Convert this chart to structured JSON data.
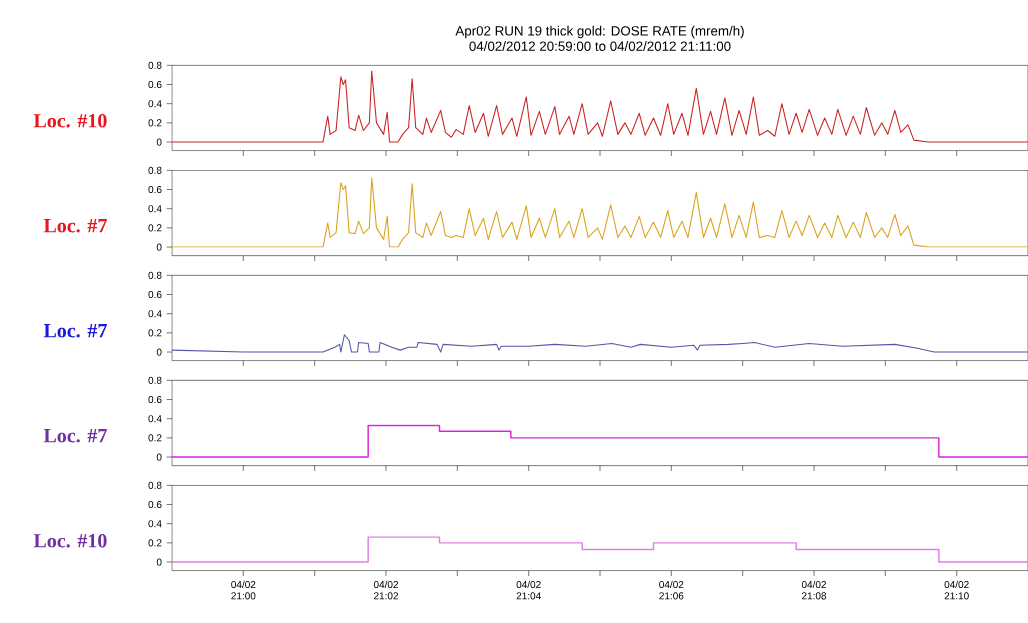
{
  "chart_data": [
    {
      "type": "line",
      "title": "Apr02 RUN 19  thick gold:    DOSE RATE (mrem/h)",
      "subtitle": "04/02/2012 20:59:00  to  04/02/2012 21:11:00",
      "ylabel": "Loc. #10",
      "tick_labels": "y",
      "xlim": [
        "2012-04-02T20:59:00",
        "2012-04-02T21:11:00"
      ],
      "ylim": [
        -0.09,
        0.8
      ],
      "yticks": [
        0,
        0.2,
        0.4,
        0.6,
        0.8
      ],
      "x": [
        "2012-04-02T20:59:00",
        "2012-04-02T21:00:00",
        "2012-04-02T21:01:07",
        "2012-04-02T21:01:11",
        "2012-04-02T21:01:13",
        "2012-04-02T21:01:18",
        "2012-04-02T21:01:22",
        "2012-04-02T21:01:24",
        "2012-04-02T21:01:26",
        "2012-04-02T21:01:29",
        "2012-04-02T21:01:34",
        "2012-04-02T21:01:37",
        "2012-04-02T21:01:41",
        "2012-04-02T21:01:46",
        "2012-04-02T21:01:48",
        "2012-04-02T21:01:52",
        "2012-04-02T21:01:58",
        "2012-04-02T21:02:01",
        "2012-04-02T21:02:03",
        "2012-04-02T21:02:10",
        "2012-04-02T21:02:14",
        "2012-04-02T21:02:19",
        "2012-04-02T21:02:22",
        "2012-04-02T21:02:25",
        "2012-04-02T21:02:31",
        "2012-04-02T21:02:34",
        "2012-04-02T21:02:38",
        "2012-04-02T21:02:46",
        "2012-04-02T21:02:50",
        "2012-04-02T21:02:55",
        "2012-04-02T21:02:59",
        "2012-04-02T21:03:05",
        "2012-04-02T21:03:10",
        "2012-04-02T21:03:15",
        "2012-04-02T21:03:22",
        "2012-04-02T21:03:26",
        "2012-04-02T21:03:33",
        "2012-04-02T21:03:38",
        "2012-04-02T21:03:46",
        "2012-04-02T21:03:50",
        "2012-04-02T21:03:58",
        "2012-04-02T21:04:02",
        "2012-04-02T21:04:09",
        "2012-04-02T21:04:14",
        "2012-04-02T21:04:22",
        "2012-04-02T21:04:26",
        "2012-04-02T21:04:34",
        "2012-04-02T21:04:38",
        "2012-04-02T21:04:45",
        "2012-04-02T21:04:50",
        "2012-04-02T21:04:58",
        "2012-04-02T21:05:02",
        "2012-04-02T21:05:09",
        "2012-04-02T21:05:15",
        "2012-04-02T21:05:21",
        "2012-04-02T21:05:26",
        "2012-04-02T21:05:33",
        "2012-04-02T21:05:38",
        "2012-04-02T21:05:45",
        "2012-04-02T21:05:51",
        "2012-04-02T21:05:57",
        "2012-04-02T21:06:02",
        "2012-04-02T21:06:09",
        "2012-04-02T21:06:14",
        "2012-04-02T21:06:21",
        "2012-04-02T21:06:27",
        "2012-04-02T21:06:33",
        "2012-04-02T21:06:38",
        "2012-04-02T21:06:45",
        "2012-04-02T21:06:51",
        "2012-04-02T21:06:57",
        "2012-04-02T21:07:03",
        "2012-04-02T21:07:09",
        "2012-04-02T21:07:14",
        "2012-04-02T21:07:21",
        "2012-04-02T21:07:27",
        "2012-04-02T21:07:33",
        "2012-04-02T21:07:39",
        "2012-04-02T21:07:45",
        "2012-04-02T21:07:50",
        "2012-04-02T21:07:56",
        "2012-04-02T21:08:03",
        "2012-04-02T21:08:09",
        "2012-04-02T21:08:15",
        "2012-04-02T21:08:20",
        "2012-04-02T21:08:27",
        "2012-04-02T21:08:33",
        "2012-04-02T21:08:39",
        "2012-04-02T21:08:44",
        "2012-04-02T21:08:51",
        "2012-04-02T21:08:57",
        "2012-04-02T21:09:02",
        "2012-04-02T21:09:08",
        "2012-04-02T21:09:13",
        "2012-04-02T21:09:19",
        "2012-04-02T21:09:24",
        "2012-04-02T21:09:36",
        "2012-04-02T21:11:00"
      ],
      "series": [
        {
          "color": "#cc2222",
          "values": [
            0,
            0,
            0,
            0.27,
            0.08,
            0.12,
            0.68,
            0.6,
            0.65,
            0.15,
            0.12,
            0.28,
            0.12,
            0.2,
            0.74,
            0.2,
            0.08,
            0.31,
            0,
            0,
            0.08,
            0.15,
            0.66,
            0.15,
            0.08,
            0.25,
            0.1,
            0.33,
            0.1,
            0.05,
            0.13,
            0.08,
            0.38,
            0.1,
            0.3,
            0.06,
            0.38,
            0.08,
            0.25,
            0.06,
            0.47,
            0.07,
            0.32,
            0.08,
            0.37,
            0.08,
            0.27,
            0.08,
            0.4,
            0.08,
            0.2,
            0.06,
            0.43,
            0.08,
            0.2,
            0.08,
            0.3,
            0.07,
            0.25,
            0.07,
            0.4,
            0.08,
            0.3,
            0.07,
            0.56,
            0.08,
            0.32,
            0.08,
            0.46,
            0.07,
            0.33,
            0.08,
            0.47,
            0.07,
            0.12,
            0.06,
            0.4,
            0.08,
            0.3,
            0.1,
            0.34,
            0.07,
            0.25,
            0.08,
            0.34,
            0.07,
            0.27,
            0.08,
            0.36,
            0.07,
            0.2,
            0.08,
            0.33,
            0.1,
            0.18,
            0.02,
            0,
            0
          ]
        }
      ]
    },
    {
      "type": "line",
      "ylabel": "Loc. #7",
      "tick_labels": "y",
      "xlim": [
        "2012-04-02T20:59:00",
        "2012-04-02T21:11:00"
      ],
      "ylim": [
        -0.09,
        0.8
      ],
      "yticks": [
        0,
        0.2,
        0.4,
        0.6,
        0.8
      ],
      "x": [
        "2012-04-02T20:59:00",
        "2012-04-02T21:00:00",
        "2012-04-02T21:01:07",
        "2012-04-02T21:01:11",
        "2012-04-02T21:01:13",
        "2012-04-02T21:01:18",
        "2012-04-02T21:01:22",
        "2012-04-02T21:01:24",
        "2012-04-02T21:01:26",
        "2012-04-02T21:01:29",
        "2012-04-02T21:01:34",
        "2012-04-02T21:01:37",
        "2012-04-02T21:01:41",
        "2012-04-02T21:01:46",
        "2012-04-02T21:01:48",
        "2012-04-02T21:01:52",
        "2012-04-02T21:01:58",
        "2012-04-02T21:02:01",
        "2012-04-02T21:02:03",
        "2012-04-02T21:02:10",
        "2012-04-02T21:02:14",
        "2012-04-02T21:02:19",
        "2012-04-02T21:02:22",
        "2012-04-02T21:02:25",
        "2012-04-02T21:02:31",
        "2012-04-02T21:02:34",
        "2012-04-02T21:02:38",
        "2012-04-02T21:02:46",
        "2012-04-02T21:02:50",
        "2012-04-02T21:02:55",
        "2012-04-02T21:02:59",
        "2012-04-02T21:03:05",
        "2012-04-02T21:03:10",
        "2012-04-02T21:03:15",
        "2012-04-02T21:03:22",
        "2012-04-02T21:03:26",
        "2012-04-02T21:03:33",
        "2012-04-02T21:03:38",
        "2012-04-02T21:03:46",
        "2012-04-02T21:03:50",
        "2012-04-02T21:03:58",
        "2012-04-02T21:04:02",
        "2012-04-02T21:04:09",
        "2012-04-02T21:04:14",
        "2012-04-02T21:04:22",
        "2012-04-02T21:04:26",
        "2012-04-02T21:04:34",
        "2012-04-02T21:04:38",
        "2012-04-02T21:04:45",
        "2012-04-02T21:04:50",
        "2012-04-02T21:04:58",
        "2012-04-02T21:05:02",
        "2012-04-02T21:05:09",
        "2012-04-02T21:05:15",
        "2012-04-02T21:05:21",
        "2012-04-02T21:05:26",
        "2012-04-02T21:05:33",
        "2012-04-02T21:05:38",
        "2012-04-02T21:05:45",
        "2012-04-02T21:05:51",
        "2012-04-02T21:05:57",
        "2012-04-02T21:06:02",
        "2012-04-02T21:06:09",
        "2012-04-02T21:06:14",
        "2012-04-02T21:06:21",
        "2012-04-02T21:06:27",
        "2012-04-02T21:06:33",
        "2012-04-02T21:06:38",
        "2012-04-02T21:06:45",
        "2012-04-02T21:06:51",
        "2012-04-02T21:06:57",
        "2012-04-02T21:07:03",
        "2012-04-02T21:07:09",
        "2012-04-02T21:07:14",
        "2012-04-02T21:07:21",
        "2012-04-02T21:07:27",
        "2012-04-02T21:07:33",
        "2012-04-02T21:07:39",
        "2012-04-02T21:07:45",
        "2012-04-02T21:07:50",
        "2012-04-02T21:07:56",
        "2012-04-02T21:08:03",
        "2012-04-02T21:08:09",
        "2012-04-02T21:08:15",
        "2012-04-02T21:08:20",
        "2012-04-02T21:08:27",
        "2012-04-02T21:08:33",
        "2012-04-02T21:08:39",
        "2012-04-02T21:08:44",
        "2012-04-02T21:08:51",
        "2012-04-02T21:08:57",
        "2012-04-02T21:09:02",
        "2012-04-02T21:09:08",
        "2012-04-02T21:09:13",
        "2012-04-02T21:09:19",
        "2012-04-02T21:09:24",
        "2012-04-02T21:09:36",
        "2012-04-02T21:11:00"
      ],
      "series": [
        {
          "color": "#d9a21b",
          "values": [
            0,
            0,
            0,
            0.25,
            0.1,
            0.15,
            0.67,
            0.6,
            0.64,
            0.15,
            0.14,
            0.27,
            0.14,
            0.2,
            0.72,
            0.2,
            0.08,
            0.32,
            0,
            0,
            0.08,
            0.15,
            0.66,
            0.15,
            0.1,
            0.25,
            0.12,
            0.37,
            0.12,
            0.1,
            0.12,
            0.1,
            0.4,
            0.12,
            0.3,
            0.08,
            0.37,
            0.1,
            0.26,
            0.08,
            0.43,
            0.1,
            0.3,
            0.1,
            0.4,
            0.1,
            0.27,
            0.1,
            0.4,
            0.1,
            0.2,
            0.08,
            0.44,
            0.1,
            0.22,
            0.1,
            0.32,
            0.1,
            0.26,
            0.1,
            0.38,
            0.1,
            0.27,
            0.1,
            0.57,
            0.1,
            0.3,
            0.1,
            0.45,
            0.1,
            0.33,
            0.1,
            0.47,
            0.1,
            0.12,
            0.1,
            0.38,
            0.1,
            0.27,
            0.12,
            0.33,
            0.1,
            0.25,
            0.1,
            0.33,
            0.1,
            0.26,
            0.1,
            0.36,
            0.1,
            0.2,
            0.1,
            0.34,
            0.12,
            0.22,
            0.02,
            0,
            0
          ]
        }
      ]
    },
    {
      "type": "line",
      "ylabel": "Loc. #7",
      "tick_labels": "y",
      "xlim": [
        "2012-04-02T20:59:00",
        "2012-04-02T21:11:00"
      ],
      "ylim": [
        -0.09,
        0.8
      ],
      "yticks": [
        0,
        0.2,
        0.4,
        0.6,
        0.8
      ],
      "x": [
        "2012-04-02T20:59:00",
        "2012-04-02T21:00:00",
        "2012-04-02T21:01:07",
        "2012-04-02T21:01:17",
        "2012-04-02T21:01:21",
        "2012-04-02T21:01:22",
        "2012-04-02T21:01:25",
        "2012-04-02T21:01:29",
        "2012-04-02T21:01:31",
        "2012-04-02T21:01:36",
        "2012-04-02T21:01:37",
        "2012-04-02T21:01:45",
        "2012-04-02T21:01:46",
        "2012-04-02T21:01:54",
        "2012-04-02T21:01:55",
        "2012-04-02T21:02:05",
        "2012-04-02T21:02:12",
        "2012-04-02T21:02:19",
        "2012-04-02T21:02:26",
        "2012-04-02T21:02:27",
        "2012-04-02T21:02:43",
        "2012-04-02T21:02:46",
        "2012-04-02T21:02:48",
        "2012-04-02T21:03:12",
        "2012-04-02T21:03:33",
        "2012-04-02T21:03:35",
        "2012-04-02T21:03:37",
        "2012-04-02T21:04:00",
        "2012-04-02T21:04:22",
        "2012-04-02T21:04:48",
        "2012-04-02T21:05:10",
        "2012-04-02T21:05:26",
        "2012-04-02T21:05:34",
        "2012-04-02T21:06:00",
        "2012-04-02T21:06:19",
        "2012-04-02T21:06:22",
        "2012-04-02T21:06:24",
        "2012-04-02T21:06:48",
        "2012-04-02T21:07:00",
        "2012-04-02T21:07:10",
        "2012-04-02T21:07:27",
        "2012-04-02T21:07:56",
        "2012-04-02T21:08:24",
        "2012-04-02T21:09:08",
        "2012-04-02T21:09:27",
        "2012-04-02T21:09:41",
        "2012-04-02T21:11:00"
      ],
      "series": [
        {
          "color": "#5555aa",
          "values": [
            0.02,
            0,
            0,
            0.05,
            0.08,
            0,
            0.18,
            0.12,
            0,
            0,
            0.1,
            0.09,
            0,
            0,
            0.1,
            0.05,
            0.02,
            0.05,
            0.05,
            0.1,
            0.08,
            0,
            0.08,
            0.06,
            0.08,
            0.02,
            0.06,
            0.06,
            0.08,
            0.06,
            0.09,
            0.05,
            0.08,
            0.05,
            0.07,
            0.02,
            0.07,
            0.08,
            0.09,
            0.1,
            0.05,
            0.09,
            0.06,
            0.08,
            0.04,
            0,
            0
          ]
        }
      ]
    },
    {
      "type": "step",
      "ylabel": "Loc. #7",
      "tick_labels": "y",
      "xlim": [
        "2012-04-02T20:59:00",
        "2012-04-02T21:11:00"
      ],
      "ylim": [
        -0.09,
        0.8
      ],
      "yticks": [
        0,
        0.2,
        0.4,
        0.6,
        0.8
      ],
      "x": [
        "2012-04-02T20:59:00",
        "2012-04-02T21:01:45",
        "2012-04-02T21:02:45",
        "2012-04-02T21:03:45",
        "2012-04-02T21:04:45",
        "2012-04-02T21:05:45",
        "2012-04-02T21:06:45",
        "2012-04-02T21:07:45",
        "2012-04-02T21:08:45",
        "2012-04-02T21:09:45",
        "2012-04-02T21:11:00"
      ],
      "series": [
        {
          "color": "#dd22dd",
          "values": [
            0,
            0.33,
            0.27,
            0.2,
            0.2,
            0.2,
            0.2,
            0.2,
            0.2,
            0,
            0
          ]
        }
      ]
    },
    {
      "type": "step",
      "ylabel": "Loc. #10",
      "xlim": [
        "2012-04-02T20:59:00",
        "2012-04-02T21:11:00"
      ],
      "ylim": [
        -0.09,
        0.8
      ],
      "yticks": [
        0,
        0.2,
        0.4,
        0.6,
        0.8
      ],
      "xticks": [
        {
          "value": "2012-04-02T21:00",
          "label": "04/02 21:00"
        },
        {
          "value": "2012-04-02T21:01",
          "label": null
        },
        {
          "value": "2012-04-02T21:02",
          "label": "04/02 21:02"
        },
        {
          "value": "2012-04-02T21:03",
          "label": null
        },
        {
          "value": "2012-04-02T21:04",
          "label": "04/02 21:04"
        },
        {
          "value": "2012-04-02T21:05",
          "label": null
        },
        {
          "value": "2012-04-02T21:06",
          "label": "04/02 21:06"
        },
        {
          "value": "2012-04-02T21:07",
          "label": null
        },
        {
          "value": "2012-04-02T21:08",
          "label": "04/02 21:08"
        },
        {
          "value": "2012-04-02T21:09",
          "label": null
        },
        {
          "value": "2012-04-02T21:10",
          "label": "04/02 21:10"
        }
      ],
      "x": [
        "2012-04-02T20:59:00",
        "2012-04-02T21:01:45",
        "2012-04-02T21:02:45",
        "2012-04-02T21:03:45",
        "2012-04-02T21:04:45",
        "2012-04-02T21:05:45",
        "2012-04-02T21:06:45",
        "2012-04-02T21:07:45",
        "2012-04-02T21:08:45",
        "2012-04-02T21:09:45",
        "2012-04-02T21:11:00"
      ],
      "series": [
        {
          "color": "#e080e0",
          "values": [
            0,
            0.26,
            0.2,
            0.2,
            0.13,
            0.2,
            0.2,
            0.13,
            0.13,
            0,
            0
          ]
        }
      ]
    }
  ]
}
